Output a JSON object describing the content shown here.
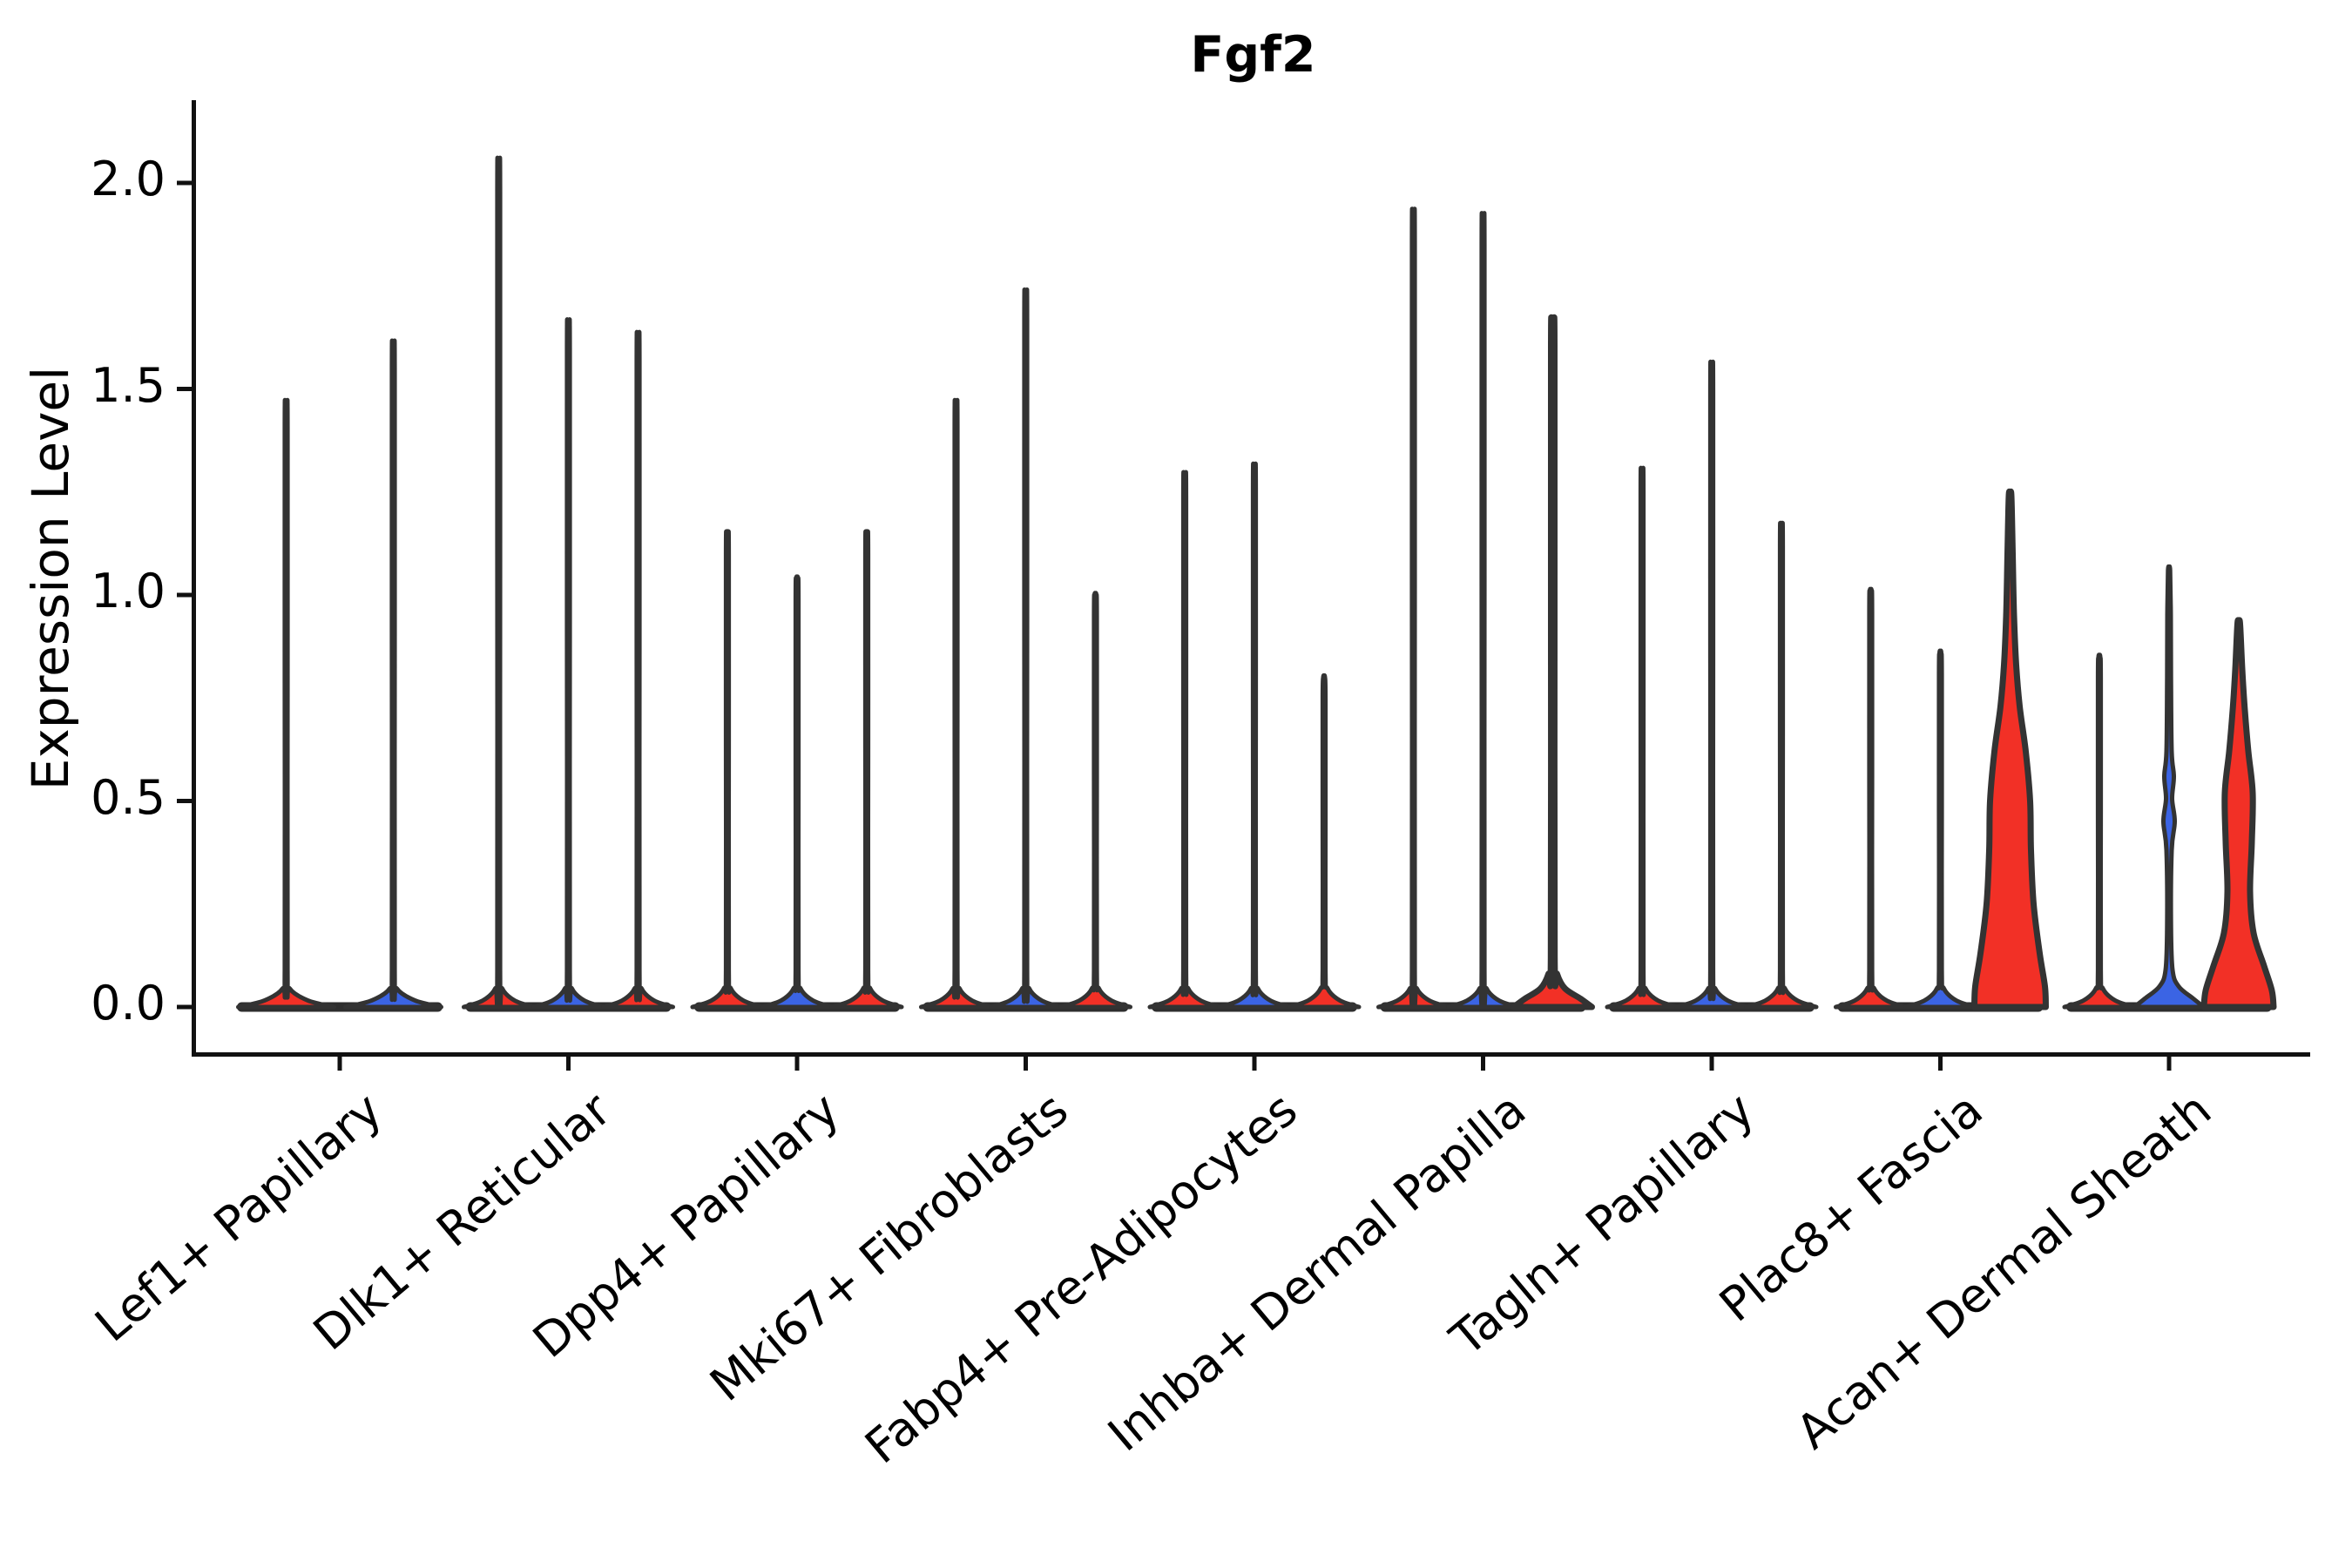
{
  "chart_data": {
    "type": "violin",
    "title": "Fgf2",
    "ylabel": "Expression Level",
    "xlabel": "",
    "ylim": [
      0,
      2.2
    ],
    "ytick_values": [
      0,
      0.5,
      1.0,
      1.5,
      2.0
    ],
    "ytick_labels": [
      "0.0",
      "0.5",
      "1.0",
      "1.5",
      "2.0"
    ],
    "grid": "off",
    "legend": "none",
    "x_label_rotation_deg": 40,
    "colors": {
      "red_fill": "#F23026",
      "blue_fill": "#3B64E4",
      "violin_outline": "#333333",
      "baseline": "#2e2e2e",
      "axis": "#111111",
      "text": "#000000",
      "background": "#ffffff"
    },
    "categories": [
      "Lef1+ Papillary",
      "Dlk1+ Reticular",
      "Dpp4+ Papillary",
      "Mki67+ Fibroblasts",
      "Fabp4+ Pre-Adipocytes",
      "Inhba+ Dermal Papilla",
      "Tagln+ Papillary",
      "Plac8+ Fascia",
      "Acan+ Dermal Sheath"
    ],
    "groups": [
      {
        "label": "Lef1+ Papillary",
        "violins": [
          {
            "max": 1.46,
            "color": "#F23026",
            "base_halfwidth": 55,
            "shape": "spike"
          },
          {
            "max": 1.6,
            "color": "#3B64E4",
            "base_halfwidth": 55,
            "shape": "spike"
          }
        ]
      },
      {
        "label": "Dlk1+ Reticular",
        "violins": [
          {
            "max": 2.03,
            "color": "#F23026",
            "base_halfwidth": 40,
            "shape": "spike"
          },
          {
            "max": 1.65,
            "color": "#3B64E4",
            "base_halfwidth": 40,
            "shape": "spike"
          },
          {
            "max": 1.62,
            "color": "#F23026",
            "base_halfwidth": 40,
            "shape": "spike"
          }
        ]
      },
      {
        "label": "Dpp4+ Papillary",
        "violins": [
          {
            "max": 1.15,
            "color": "#F23026",
            "base_halfwidth": 40,
            "shape": "spike"
          },
          {
            "max": 1.04,
            "color": "#3B64E4",
            "base_halfwidth": 40,
            "shape": "spike"
          },
          {
            "max": 1.15,
            "color": "#F23026",
            "base_halfwidth": 40,
            "shape": "spike"
          }
        ]
      },
      {
        "label": "Mki67+ Fibroblasts",
        "violins": [
          {
            "max": 1.46,
            "color": "#F23026",
            "base_halfwidth": 40,
            "shape": "spike"
          },
          {
            "max": 1.72,
            "color": "#3B64E4",
            "base_halfwidth": 40,
            "shape": "spike"
          },
          {
            "max": 1.0,
            "color": "#F23026",
            "base_halfwidth": 40,
            "shape": "spike"
          }
        ]
      },
      {
        "label": "Fabp4+ Pre-Adipocytes",
        "violins": [
          {
            "max": 1.29,
            "color": "#F23026",
            "base_halfwidth": 40,
            "shape": "spike"
          },
          {
            "max": 1.31,
            "color": "#3B64E4",
            "base_halfwidth": 40,
            "shape": "spike"
          },
          {
            "max": 0.8,
            "color": "#F23026",
            "base_halfwidth": 40,
            "shape": "spike"
          }
        ]
      },
      {
        "label": "Inhba+ Dermal Papilla",
        "violins": [
          {
            "max": 1.91,
            "color": "#F23026",
            "base_halfwidth": 40,
            "shape": "spike"
          },
          {
            "max": 1.9,
            "color": "#3B64E4",
            "base_halfwidth": 40,
            "shape": "spike"
          },
          {
            "max": 1.66,
            "color": "#F23026",
            "base_halfwidth": 45,
            "shape": "bump",
            "profile": [
              [
                0,
                45
              ],
              [
                0.02,
                32
              ],
              [
                0.045,
                14
              ],
              [
                0.08,
                5
              ],
              [
                0.12,
                2.2
              ],
              [
                0.9,
                2
              ],
              [
                1.6,
                2
              ],
              [
                1.66,
                1.2
              ]
            ]
          }
        ]
      },
      {
        "label": "Tagln+ Papillary",
        "violins": [
          {
            "max": 1.3,
            "color": "#F23026",
            "base_halfwidth": 40,
            "shape": "spike"
          },
          {
            "max": 1.55,
            "color": "#3B64E4",
            "base_halfwidth": 40,
            "shape": "spike"
          },
          {
            "max": 1.17,
            "color": "#F23026",
            "base_halfwidth": 40,
            "shape": "spike"
          }
        ]
      },
      {
        "label": "Plac8+ Fascia",
        "violins": [
          {
            "max": 1.01,
            "color": "#F23026",
            "base_halfwidth": 40,
            "shape": "spike"
          },
          {
            "max": 0.86,
            "color": "#3B64E4",
            "base_halfwidth": 40,
            "shape": "spike"
          },
          {
            "max": 1.24,
            "color": "#F23026",
            "base_halfwidth": 41,
            "shape": "violin",
            "profile": [
              [
                0,
                41
              ],
              [
                0.05,
                40
              ],
              [
                0.13,
                34
              ],
              [
                0.25,
                27
              ],
              [
                0.38,
                24
              ],
              [
                0.5,
                23
              ],
              [
                0.62,
                18
              ],
              [
                0.73,
                11
              ],
              [
                0.83,
                7
              ],
              [
                0.95,
                4.5
              ],
              [
                1.1,
                3
              ],
              [
                1.24,
                1.5
              ]
            ]
          }
        ]
      },
      {
        "label": "Acan+ Dermal Sheath",
        "violins": [
          {
            "max": 0.85,
            "color": "#F23026",
            "base_halfwidth": 40,
            "shape": "spike"
          },
          {
            "max": 1.06,
            "color": "#3B64E4",
            "base_halfwidth": 40,
            "shape": "beaded-spike",
            "profile": [
              [
                0,
                40
              ],
              [
                0.02,
                28
              ],
              [
                0.05,
                11
              ],
              [
                0.09,
                4
              ],
              [
                0.2,
                2.2
              ],
              [
                0.38,
                3
              ],
              [
                0.45,
                6.5
              ],
              [
                0.505,
                3.5
              ],
              [
                0.56,
                5.5
              ],
              [
                0.62,
                3
              ],
              [
                0.8,
                2.2
              ],
              [
                0.95,
                2
              ],
              [
                1.06,
                1.2
              ]
            ]
          },
          {
            "max": 0.93,
            "color": "#F23026",
            "base_halfwidth": 40,
            "shape": "violin",
            "profile": [
              [
                0,
                40
              ],
              [
                0.04,
                38
              ],
              [
                0.1,
                29
              ],
              [
                0.18,
                17
              ],
              [
                0.28,
                13
              ],
              [
                0.4,
                15
              ],
              [
                0.52,
                16
              ],
              [
                0.62,
                11
              ],
              [
                0.72,
                7
              ],
              [
                0.82,
                4
              ],
              [
                0.93,
                1.5
              ]
            ]
          }
        ]
      }
    ]
  }
}
